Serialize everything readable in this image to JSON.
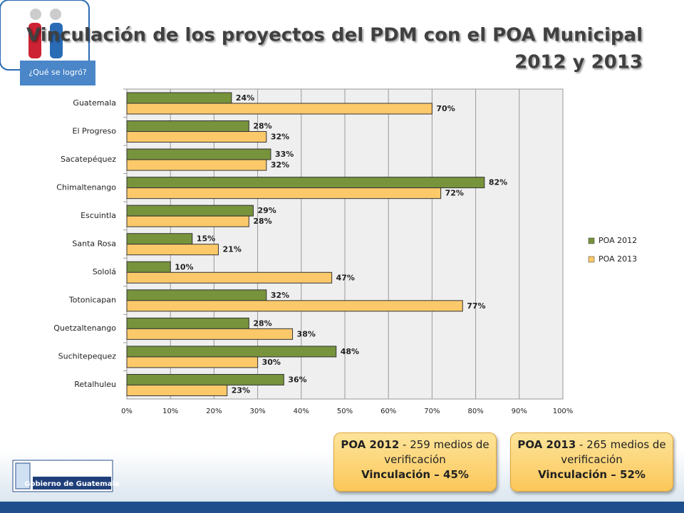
{
  "badge": "¿Qué se logró?",
  "footer": {
    "logo": "Gobierno de Guatemala"
  },
  "boxes": [
    {
      "heading": "POA 2012",
      "detail": "- 259 medios de verificación",
      "result": "Vinculación – 45%"
    },
    {
      "heading": "POA 2013",
      "detail": "- 265 medios de verificación",
      "result": "Vinculación – 52%"
    }
  ],
  "chart_data": {
    "type": "hbar",
    "title": [
      "Vinculación de los proyectos del PDM con el POA Municipal",
      "2012 y 2013"
    ],
    "categories": [
      "Guatemala",
      "El Progreso",
      "Sacatepéquez",
      "Chimaltenango",
      "Escuintla",
      "Santa Rosa",
      "Sololá",
      "Totonicapan",
      "Quetzaltenango",
      "Suchitepequez",
      "Retalhuleu"
    ],
    "series": [
      {
        "name": "POA 2012",
        "color": "#77933c",
        "values": [
          24,
          28,
          33,
          82,
          29,
          15,
          10,
          32,
          28,
          48,
          36
        ],
        "value_labels": [
          "24%",
          "28%",
          "33%",
          "82%",
          "29%",
          "15%",
          "10%",
          "32%",
          "28%",
          "48%",
          "36%"
        ]
      },
      {
        "name": "POA 2013",
        "color": "#fcc96a",
        "values": [
          70,
          32,
          32,
          72,
          28,
          21,
          47,
          77,
          38,
          30,
          23
        ],
        "value_labels": [
          "70%",
          "32%",
          "32%",
          "72%",
          "28%",
          "21%",
          "47%",
          "77%",
          "38%",
          "30%",
          "23%"
        ]
      }
    ],
    "xlim": [
      0,
      100
    ],
    "xticks": [
      {
        "value": 0,
        "label": "0%"
      },
      {
        "value": 10,
        "label": "10%"
      },
      {
        "value": 20,
        "label": "20%"
      },
      {
        "value": 30,
        "label": "30%"
      },
      {
        "value": 40,
        "label": "40%"
      },
      {
        "value": 50,
        "label": "50%"
      },
      {
        "value": 60,
        "label": "60%"
      },
      {
        "value": 70,
        "label": "70%"
      },
      {
        "value": 80,
        "label": "80%"
      },
      {
        "value": 90,
        "label": "90%"
      },
      {
        "value": 100,
        "label": "100%"
      }
    ],
    "grid": true,
    "legend": "right"
  }
}
